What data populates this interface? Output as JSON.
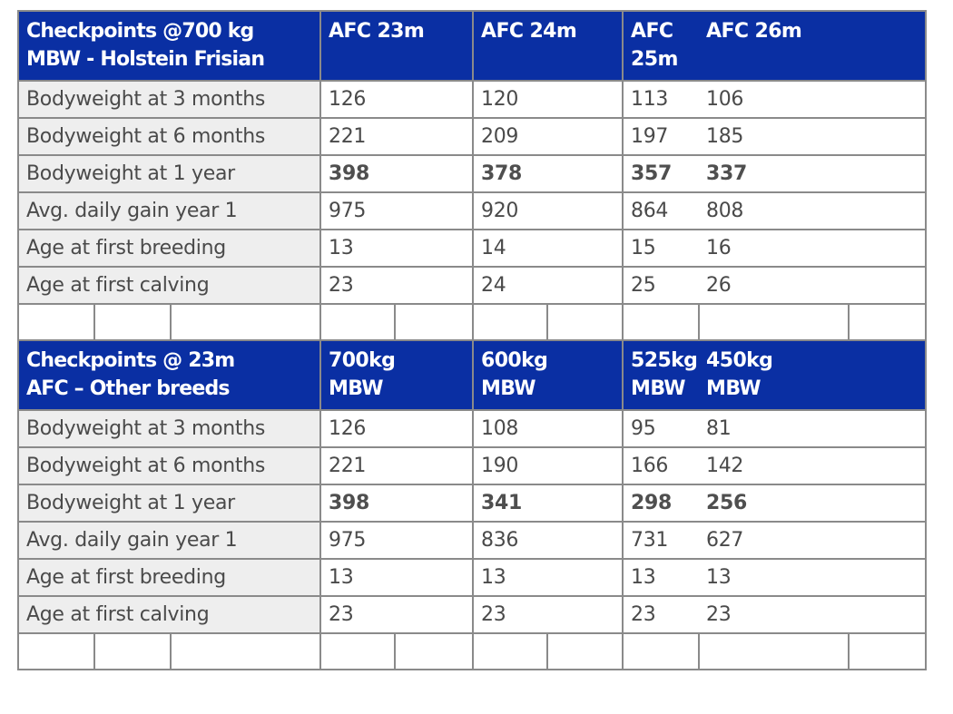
{
  "section1": {
    "header": {
      "title_line1": "Checkpoints @700 kg",
      "title_line2": "MBW - Holstein Frisian",
      "cols": [
        "AFC 23m",
        "AFC 24m",
        "AFC 25m",
        "AFC 26m"
      ]
    },
    "rows": [
      {
        "label": "Bodyweight at 3 months",
        "values": [
          "126",
          "120",
          "113",
          "106"
        ],
        "bold": false
      },
      {
        "label": "Bodyweight at 6 months",
        "values": [
          "221",
          "209",
          "197",
          "185"
        ],
        "bold": false
      },
      {
        "label": "Bodyweight at 1 year",
        "values": [
          "398",
          "378",
          "357",
          "337"
        ],
        "bold": true
      },
      {
        "label": "Avg. daily gain year 1",
        "values": [
          "975",
          "920",
          "864",
          "808"
        ],
        "bold": false
      },
      {
        "label": "Age at first breeding",
        "values": [
          "13",
          "14",
          "15",
          "16"
        ],
        "bold": false
      },
      {
        "label": "Age at first calving",
        "values": [
          "23",
          "24",
          "25",
          "26"
        ],
        "bold": false
      }
    ]
  },
  "section2": {
    "header": {
      "title_line1": "Checkpoints @ 23m",
      "title_line2": "AFC – Other breeds",
      "cols": [
        {
          "line1": "700kg",
          "line2": "MBW"
        },
        {
          "line1": "600kg",
          "line2": "MBW"
        },
        {
          "line1": "525kg",
          "line2": "MBW"
        },
        {
          "line1": "450kg",
          "line2": "MBW"
        }
      ]
    },
    "rows": [
      {
        "label": "Bodyweight at 3 months",
        "values": [
          "126",
          "108",
          "95",
          "81"
        ],
        "bold": false
      },
      {
        "label": "Bodyweight at 6 months",
        "values": [
          "221",
          "190",
          "166",
          "142"
        ],
        "bold": false
      },
      {
        "label": "Bodyweight at 1 year",
        "values": [
          "398",
          "341",
          "298",
          "256"
        ],
        "bold": true
      },
      {
        "label": "Avg. daily gain year 1",
        "values": [
          "975",
          "836",
          "731",
          "627"
        ],
        "bold": false
      },
      {
        "label": "Age at first breeding",
        "values": [
          "13",
          "13",
          "13",
          "13"
        ],
        "bold": false
      },
      {
        "label": "Age at first calving",
        "values": [
          "23",
          "23",
          "23",
          "23"
        ],
        "bold": false
      }
    ]
  },
  "colors": {
    "header_bg": "#0a2fa3",
    "label_bg": "#eeeeee",
    "border": "#8a8a8a",
    "text": "#4a4a4a"
  }
}
